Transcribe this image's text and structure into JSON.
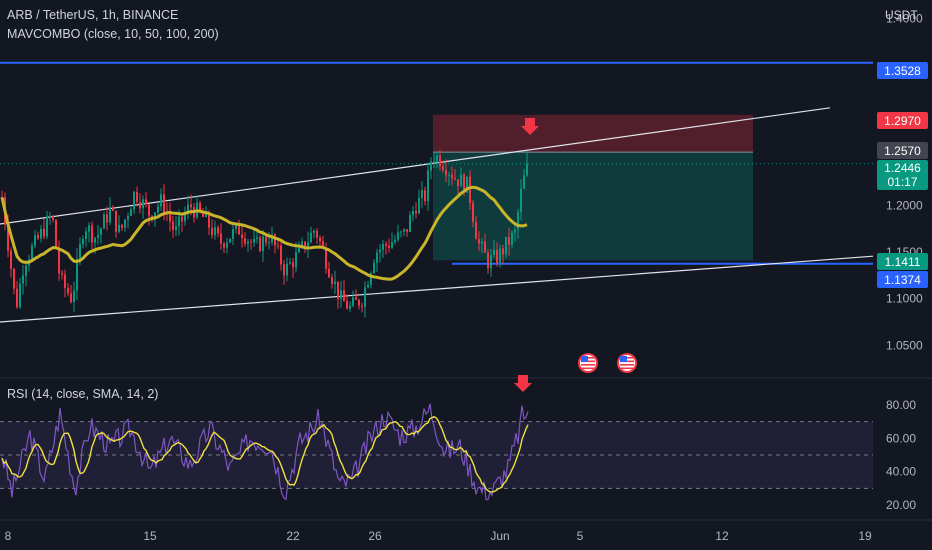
{
  "header": {
    "symbol_line": "ARB / TetherUS, 1h, BINANCE",
    "indicator_line": "MAVCOMBO (close, 10, 50, 100, 200)",
    "rsi_line": "RSI (14, close, SMA, 14, 2)",
    "currency": "USDT"
  },
  "price_tags": [
    {
      "label": "1.3528",
      "color": "#2962ff"
    },
    {
      "label": "1.2970",
      "color": "#f23645"
    },
    {
      "label": "1.2570",
      "color": "#434651"
    },
    {
      "label": "1.2446",
      "color": "#089981"
    },
    {
      "label": "01:17",
      "color": "#089981"
    },
    {
      "label": "1.1411",
      "color": "#089981"
    },
    {
      "label": "1.1374",
      "color": "#2962ff"
    }
  ],
  "chart_data": [
    {
      "type": "candlestick",
      "symbol": "ARB / TetherUS",
      "interval": "1h",
      "exchange": "BINANCE",
      "ylim": [
        1.02,
        1.41
      ],
      "y_ticks": [
        "1.4000",
        "1.2000",
        "1.1500",
        "1.1000",
        "1.0500"
      ],
      "x_ticks": [
        "8",
        "15",
        "22",
        "26",
        "Jun",
        "5",
        "12",
        "19"
      ],
      "horizontal_lines": [
        1.3528,
        1.1374
      ],
      "position": {
        "entry": 1.257,
        "stop": 1.297,
        "target": 1.1411
      },
      "last_price": 1.2446,
      "countdown": "01:17",
      "ma_color": "#c9b52a",
      "up_color": "#089981",
      "down_color": "#f23645",
      "grid": false
    },
    {
      "type": "line",
      "title": "RSI (14, close, SMA, 14, 2)",
      "ylim": [
        15,
        85
      ],
      "y_ticks": [
        "80.00",
        "60.00",
        "40.00",
        "20.00"
      ],
      "bands": [
        70,
        50,
        30
      ],
      "rsi_color": "#7e57c2",
      "sma_color": "#f0e040",
      "last_rsi": 76
    }
  ]
}
